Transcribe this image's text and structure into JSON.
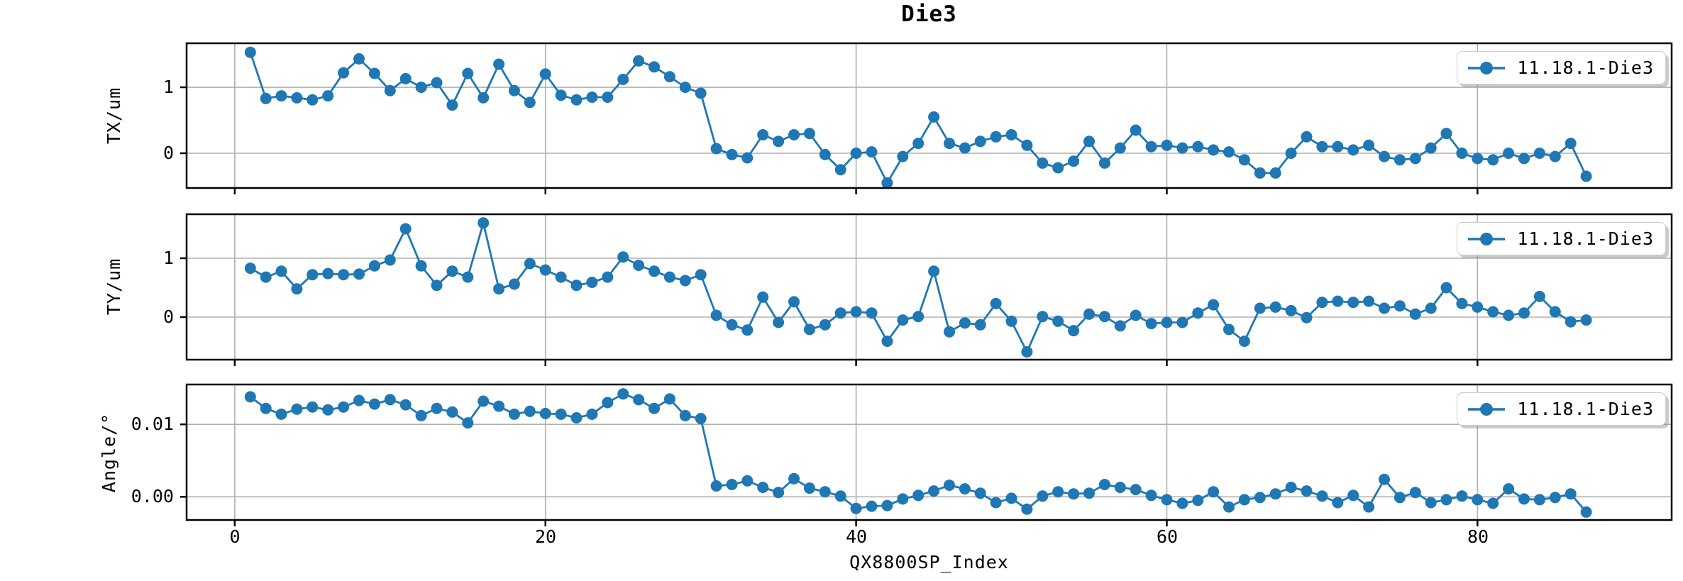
{
  "figure": {
    "title": "Die3",
    "background": "#ffffff"
  },
  "colors": {
    "series": "#1f77b4",
    "grid": "#b0b0b0",
    "spine": "#000000",
    "legend_border": "#cccccc"
  },
  "axes": {
    "xlabel": "QX8800SP_Index",
    "xtick_labels": [
      "0",
      "20",
      "40",
      "60",
      "80"
    ],
    "xtick_values": [
      0,
      20,
      40,
      60,
      80
    ],
    "xlim": [
      -3.1,
      92.5
    ]
  },
  "chart_data": [
    {
      "type": "line",
      "ylabel": "TX/um",
      "legend": "11.18.1-Die3",
      "legend_position": "upper right",
      "grid": true,
      "marker": "circle",
      "x_range": [
        1,
        87
      ],
      "ytick_labels": [
        "1",
        "0"
      ],
      "ytick_values": [
        1,
        0
      ],
      "ylim": [
        -0.527,
        1.667
      ],
      "values": [
        1.53,
        0.83,
        0.87,
        0.84,
        0.81,
        0.87,
        1.22,
        1.43,
        1.21,
        0.95,
        1.13,
        1.0,
        1.07,
        0.73,
        1.21,
        0.84,
        1.35,
        0.95,
        0.77,
        1.2,
        0.88,
        0.81,
        0.85,
        0.85,
        1.12,
        1.4,
        1.31,
        1.16,
        1.0,
        0.91,
        0.07,
        -0.02,
        -0.07,
        0.28,
        0.18,
        0.28,
        0.3,
        -0.02,
        -0.25,
        0.0,
        0.02,
        -0.45,
        -0.05,
        0.15,
        0.55,
        0.15,
        0.08,
        0.18,
        0.25,
        0.28,
        0.12,
        -0.15,
        -0.22,
        -0.12,
        0.18,
        -0.15,
        0.08,
        0.35,
        0.1,
        0.12,
        0.08,
        0.1,
        0.05,
        0.02,
        -0.1,
        -0.3,
        -0.3,
        0.0,
        0.25,
        0.1,
        0.1,
        0.05,
        0.12,
        -0.05,
        -0.1,
        -0.08,
        0.08,
        0.3,
        0.0,
        -0.08,
        -0.1,
        0.0,
        -0.08,
        0.0,
        -0.05,
        0.15,
        -0.35
      ]
    },
    {
      "type": "line",
      "ylabel": "TY/um",
      "legend": "11.18.1-Die3",
      "legend_position": "upper right",
      "grid": true,
      "marker": "circle",
      "x_range": [
        1,
        87
      ],
      "ytick_labels": [
        "1",
        "0"
      ],
      "ytick_values": [
        1,
        0
      ],
      "ylim": [
        -0.723,
        1.747
      ],
      "values": [
        0.83,
        0.68,
        0.78,
        0.48,
        0.72,
        0.74,
        0.72,
        0.73,
        0.87,
        0.97,
        1.5,
        0.87,
        0.54,
        0.78,
        0.68,
        1.6,
        0.48,
        0.56,
        0.91,
        0.8,
        0.68,
        0.54,
        0.59,
        0.68,
        1.02,
        0.88,
        0.78,
        0.68,
        0.62,
        0.72,
        0.03,
        -0.13,
        -0.22,
        0.34,
        -0.09,
        0.26,
        -0.21,
        -0.13,
        0.07,
        0.09,
        0.07,
        -0.41,
        -0.05,
        0.01,
        0.78,
        -0.25,
        -0.1,
        -0.13,
        0.23,
        -0.07,
        -0.59,
        0.01,
        -0.07,
        -0.23,
        0.05,
        0.01,
        -0.15,
        0.03,
        -0.11,
        -0.09,
        -0.09,
        0.07,
        0.21,
        -0.21,
        -0.41,
        0.15,
        0.17,
        0.11,
        -0.01,
        0.25,
        0.27,
        0.25,
        0.27,
        0.15,
        0.19,
        0.05,
        0.15,
        0.5,
        0.23,
        0.17,
        0.09,
        0.03,
        0.07,
        0.35,
        0.09,
        -0.08,
        -0.05
      ]
    },
    {
      "type": "line",
      "ylabel": "Angle/°",
      "legend": "11.18.1-Die3",
      "legend_position": "upper right",
      "grid": true,
      "marker": "circle",
      "x_range": [
        1,
        87
      ],
      "ytick_labels": [
        "0.01",
        "0.00"
      ],
      "ytick_values": [
        0.01,
        0.0
      ],
      "ylim": [
        -0.0032,
        0.0155
      ],
      "values": [
        0.0138,
        0.0122,
        0.0114,
        0.0121,
        0.0124,
        0.012,
        0.0124,
        0.0133,
        0.0128,
        0.0134,
        0.0127,
        0.0112,
        0.0122,
        0.0117,
        0.0102,
        0.0132,
        0.0125,
        0.0114,
        0.0118,
        0.0115,
        0.0114,
        0.0109,
        0.0114,
        0.013,
        0.0142,
        0.0134,
        0.0122,
        0.0135,
        0.0112,
        0.0108,
        0.0015,
        0.0017,
        0.0022,
        0.0013,
        0.0006,
        0.0025,
        0.0012,
        0.0007,
        0.0001,
        -0.0016,
        -0.0013,
        -0.0012,
        -0.0003,
        0.0002,
        0.0008,
        0.0016,
        0.0011,
        0.0005,
        -0.0008,
        -0.0002,
        -0.0017,
        0.0001,
        0.0007,
        0.0004,
        0.0005,
        0.0017,
        0.0013,
        0.001,
        0.0002,
        -0.0004,
        -0.0009,
        -0.0005,
        0.0007,
        -0.0014,
        -0.0004,
        -0.0001,
        0.0004,
        0.0013,
        0.0008,
        0.0001,
        -0.0008,
        0.0002,
        -0.0014,
        0.0024,
        -0.0001,
        0.0006,
        -0.0008,
        -0.0004,
        0.0001,
        -0.0004,
        -0.0009,
        0.0011,
        -0.0003,
        -0.0004,
        -0.0001,
        0.0004,
        -0.0021
      ]
    }
  ]
}
